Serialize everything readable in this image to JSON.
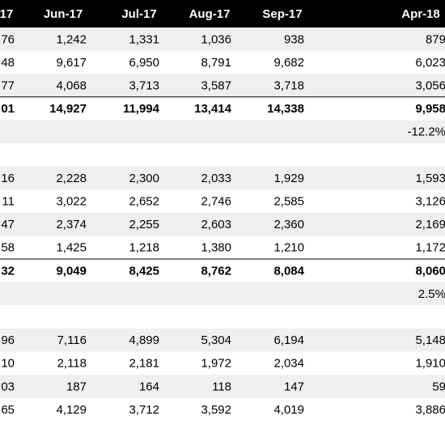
{
  "table": {
    "header": [
      "17",
      "Jun-17",
      "Jul-17",
      "Aug-17",
      "Sep-17",
      "Apr-18"
    ],
    "rows": [
      [
        "76",
        "1,242",
        "1,331",
        "1,036",
        "938",
        "879"
      ],
      [
        "48",
        "9,617",
        "6,950",
        "8,791",
        "9,682",
        "6,023"
      ],
      [
        "77",
        "4,068",
        "3,713",
        "3,587",
        "3,718",
        "3,056"
      ],
      [
        "01",
        "14,927",
        "11,994",
        "13,414",
        "14,338",
        "9,958"
      ],
      [
        null,
        null,
        null,
        null,
        null,
        "-12.2%"
      ],
      [
        null,
        null,
        null,
        null,
        null,
        null
      ],
      [
        "16",
        "2,228",
        "2,300",
        "2,033",
        "1,929",
        "1,593"
      ],
      [
        "11",
        "3,022",
        "2,652",
        "2,746",
        "2,585",
        "3,126"
      ],
      [
        "47",
        "2,374",
        "2,255",
        "2,603",
        "2,360",
        "2,169"
      ],
      [
        "58",
        "1,425",
        "1,218",
        "1,380",
        "1,210",
        "1,172"
      ],
      [
        "32",
        "9,049",
        "8,425",
        "8,762",
        "8,084",
        "8,060"
      ],
      [
        null,
        null,
        null,
        null,
        null,
        "2.5%"
      ],
      [
        null,
        null,
        null,
        null,
        null,
        null
      ],
      [
        "96",
        "7,116",
        "4,899",
        "5,304",
        "6,194",
        "5,148"
      ],
      [
        "10",
        "2,118",
        "2,181",
        "1,972",
        "2,034",
        "1,910"
      ],
      [
        "03",
        "187",
        "164",
        "118",
        "147",
        "59"
      ],
      [
        "65",
        "4,129",
        "3,712",
        "3,592",
        "4,019",
        "3,886"
      ]
    ]
  }
}
